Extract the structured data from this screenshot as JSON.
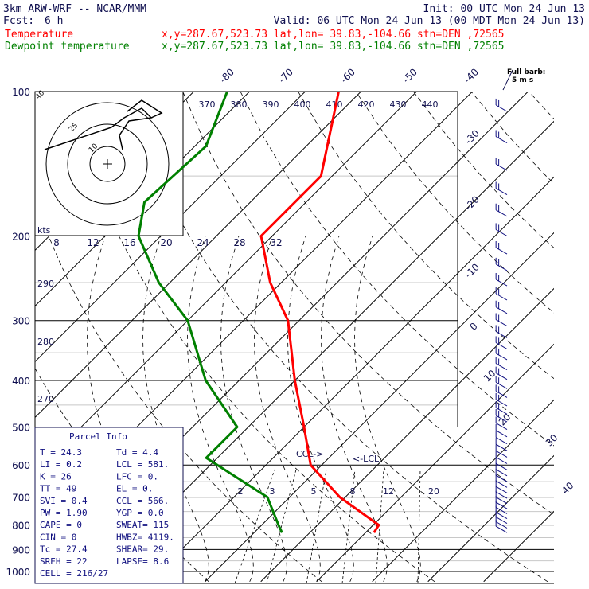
{
  "header": {
    "model": "3km ARW-WRF -- NCAR/MMM",
    "init": "Init: 00 UTC Mon 24 Jun 13",
    "fcst_label": "Fcst:",
    "fcst_value": "6 h",
    "valid": "Valid: 06 UTC Mon 24 Jun 13 (00 MDT Mon 24 Jun 13)"
  },
  "colors": {
    "temperature": "#ff0000",
    "dewpoint": "#008000",
    "navy": "#101050",
    "grid": "#000000",
    "iso_lightgray": "#c8c8c8"
  },
  "legend": [
    {
      "name": "Temperature",
      "info": "x,y=287.67,523.73    lat,lon= 39.83,-104.66    stn=DEN ,72565",
      "color": "#ff0000"
    },
    {
      "name": "Dewpoint temperature",
      "info": "x,y=287.67,523.73    lat,lon= 39.83,-104.66    stn=DEN ,72565",
      "color": "#008000"
    }
  ],
  "chart_data": {
    "type": "skew-t",
    "pressure_levels_hPa": [
      100,
      200,
      300,
      400,
      500,
      600,
      700,
      800,
      900,
      1000
    ],
    "pressure_labels": [
      "100",
      "200",
      "300",
      "400",
      "500",
      "600",
      "700",
      "800",
      "900",
      "1000"
    ],
    "isotherm_labels_C": [
      "-80",
      "-70",
      "-60",
      "-50",
      "-40",
      "-30",
      "-20",
      "-10",
      "0",
      "10",
      "20",
      "30",
      "40"
    ],
    "theta_e_labels_K": [
      "370",
      "380",
      "390",
      "400",
      "410",
      "420",
      "430",
      "440"
    ],
    "mixing_ratio_labels": [
      "2",
      "3",
      "5",
      "8",
      "12",
      "20"
    ],
    "lcl_labels": [
      "CCL->",
      "<-LCL"
    ],
    "hodograph": {
      "units": "kts",
      "speed_labels": [
        "8",
        "12",
        "16",
        "20",
        "24",
        "28",
        "32"
      ],
      "ring_labels": [
        "10",
        "25",
        "40"
      ],
      "direction_labels": [
        "290",
        "280",
        "270"
      ]
    },
    "barb_legend": [
      "Full barb:",
      "5 m s"
    ],
    "temperature_C": [
      [
        100,
        -64
      ],
      [
        150,
        -52
      ],
      [
        200,
        -52
      ],
      [
        250,
        -42
      ],
      [
        300,
        -32
      ],
      [
        400,
        -20
      ],
      [
        500,
        -10
      ],
      [
        600,
        -2
      ],
      [
        700,
        9
      ],
      [
        800,
        21
      ],
      [
        830,
        21.5
      ]
    ],
    "dewpoint_C": [
      [
        100,
        -84
      ],
      [
        130,
        -78
      ],
      [
        170,
        -79
      ],
      [
        200,
        -74
      ],
      [
        250,
        -62
      ],
      [
        300,
        -50
      ],
      [
        400,
        -36
      ],
      [
        500,
        -22
      ],
      [
        580,
        -22
      ],
      [
        700,
        -4
      ],
      [
        800,
        3
      ],
      [
        830,
        5
      ]
    ]
  },
  "parcel_info": {
    "title": "Parcel Info",
    "rows": [
      {
        "left": "T   =    24.3",
        "right": "Td  =    4.4"
      },
      {
        "left": "LI  =     0.2",
        "right": "LCL =  581."
      },
      {
        "left": "K   =      26",
        "right": "LFC =     0."
      },
      {
        "left": "TT  =      49",
        "right": "EL  =     0."
      },
      {
        "left": "SVI =     0.4",
        "right": "CCL =  566."
      },
      {
        "left": "PW  =    1.90",
        "right": "YGP =    0.0"
      },
      {
        "left": "CAPE =      0",
        "right": "SWEAT=  115"
      },
      {
        "left": "CIN =       0",
        "right": "HWBZ= 4119."
      },
      {
        "left": "Tc  =    27.4",
        "right": "SHEAR=  29."
      },
      {
        "left": "SREH =     22",
        "right": "LAPSE=  8.6"
      },
      {
        "left": "CELL = 216/27",
        "right": ""
      }
    ]
  }
}
